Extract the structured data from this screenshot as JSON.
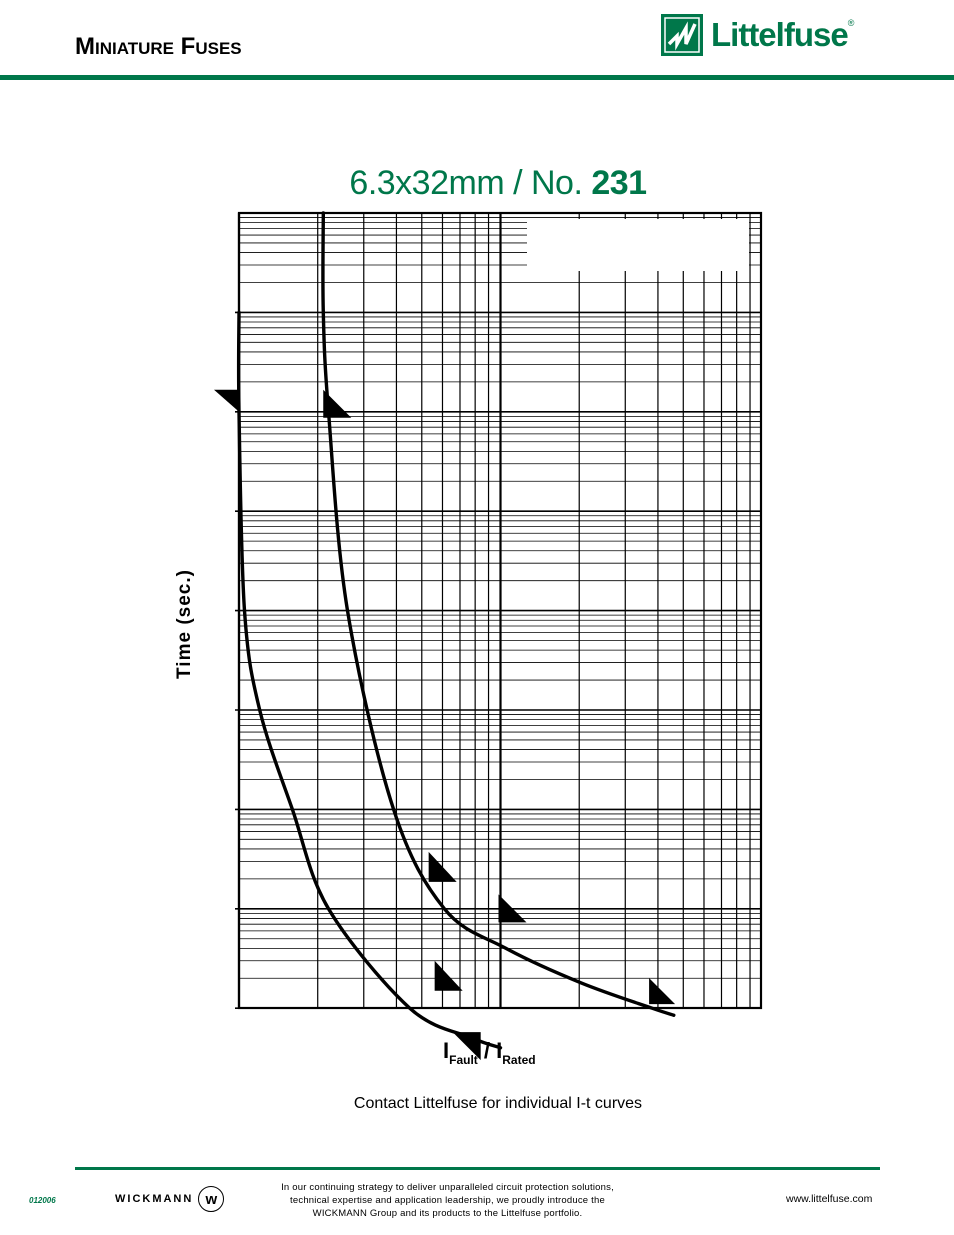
{
  "header": {
    "title": "Miniature Fuses",
    "logo_text": "Littelfuse",
    "logo_reg": "®",
    "logo_icon": "littelfuse-logo-icon"
  },
  "chart_data": {
    "type": "line",
    "title_prefix": "6.3x32mm / No. ",
    "title_number": "231",
    "ylabel": "Time (sec.)",
    "xlabel": {
      "main": "I",
      "sub1": "Fault",
      "sep": " / I",
      "sub2": "Rated"
    },
    "x_scale": "log",
    "y_scale": "log",
    "grid": true,
    "series": [
      {
        "points": [
          [
            1.0,
            1000000
          ],
          [
            1.0,
            100000
          ],
          [
            1.05,
            1000
          ],
          [
            1.2,
            100
          ],
          [
            1.6,
            10
          ],
          [
            2.2,
            1
          ],
          [
            4.5,
            0.1
          ],
          [
            7.8,
            0.05
          ],
          [
            10.0,
            0.04
          ]
        ]
      },
      {
        "points": [
          [
            2.1,
            10000000
          ],
          [
            2.1,
            1000000
          ],
          [
            2.2,
            100000
          ],
          [
            2.6,
            1000
          ],
          [
            3.9,
            10
          ],
          [
            6.1,
            1
          ],
          [
            10.5,
            0.4
          ],
          [
            20.3,
            0.18
          ],
          [
            38.0,
            0.1
          ],
          [
            46.0,
            0.085
          ]
        ]
      }
    ],
    "markers": [
      {
        "x": 1.0,
        "y": 100000
      },
      {
        "x": 2.1,
        "y": 100000
      },
      {
        "x": 5.6,
        "y": 0.15
      },
      {
        "x": 8.4,
        "y": 0.03
      },
      {
        "x": 5.6,
        "y": 1.7
      },
      {
        "x": 10.0,
        "y": 0.73
      },
      {
        "x": 37.0,
        "y": 0.11
      }
    ]
  },
  "contact_text": "Contact Littelfuse for individual I-t curves",
  "footer": {
    "code": "012006",
    "wickmann": "WICKMANN",
    "wickmann_badge": "w",
    "text_line1": "In our continuing strategy to deliver unparalleled circuit protection solutions,",
    "text_line2": "technical expertise and application leadership, we proudly introduce the",
    "text_line3": "WICKMANN Group and its products to the Littelfuse portfolio.",
    "url": "www.littelfuse.com"
  },
  "colors": {
    "brand": "#00774a",
    "ink": "#000000"
  }
}
